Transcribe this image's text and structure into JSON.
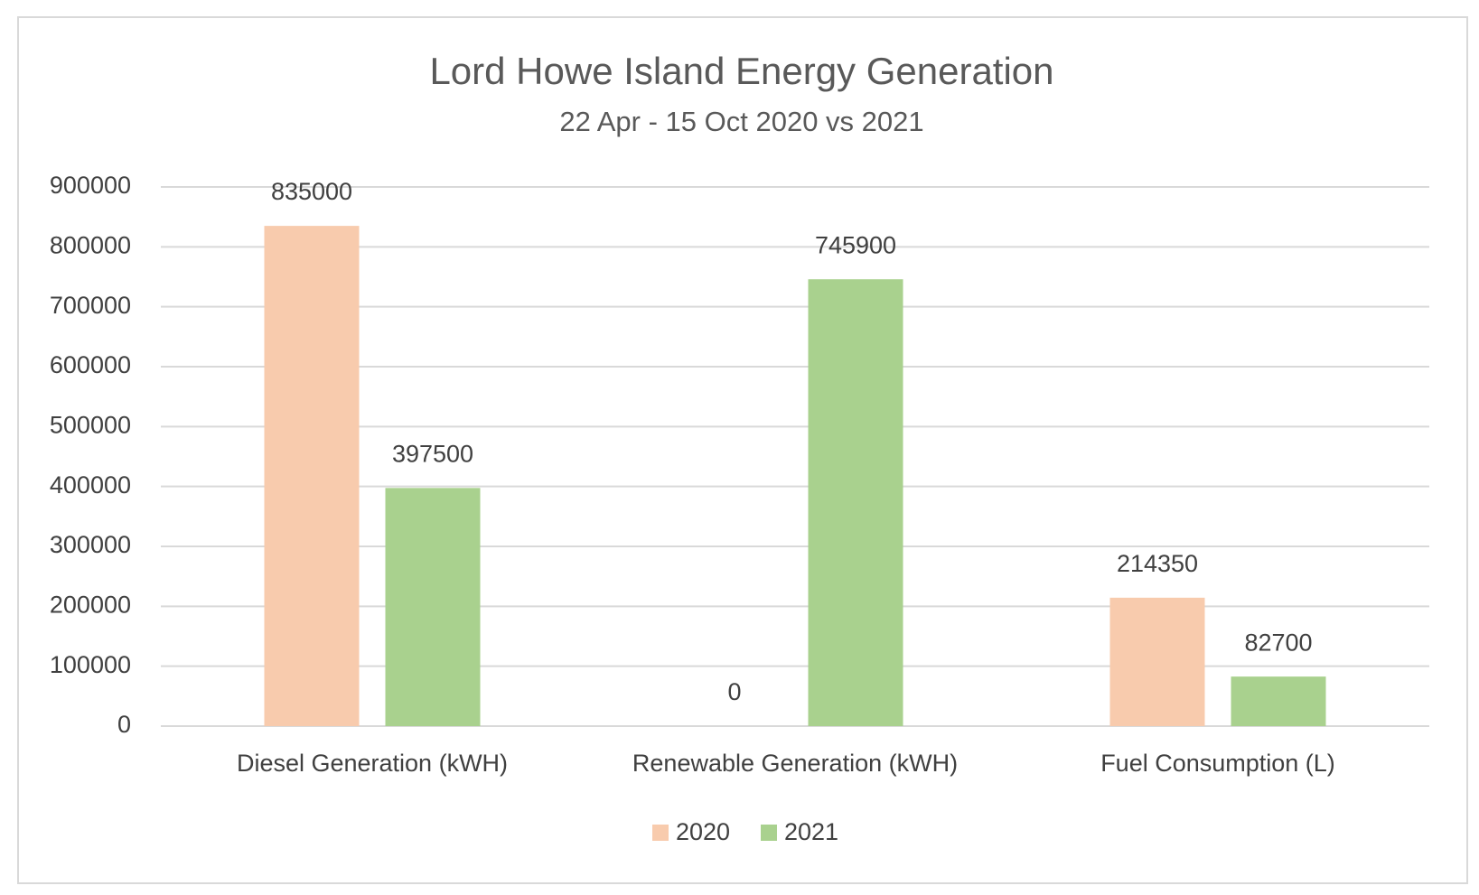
{
  "chart_data": {
    "type": "bar",
    "title": "Lord Howe Island Energy Generation",
    "subtitle": "22 Apr - 15 Oct 2020 vs 2021",
    "categories": [
      "Diesel Generation (kWH)",
      "Renewable Generation (kWH)",
      "Fuel Consumption (L)"
    ],
    "series": [
      {
        "name": "2020",
        "color": "#f8cbad",
        "values": [
          835000,
          0,
          214350
        ]
      },
      {
        "name": "2021",
        "color": "#a9d18e",
        "values": [
          397500,
          745900,
          82700
        ]
      }
    ],
    "ylim": [
      0,
      900000
    ],
    "yticks": [
      0,
      100000,
      200000,
      300000,
      400000,
      500000,
      600000,
      700000,
      800000,
      900000
    ],
    "grid": true,
    "legend": "bottom"
  }
}
